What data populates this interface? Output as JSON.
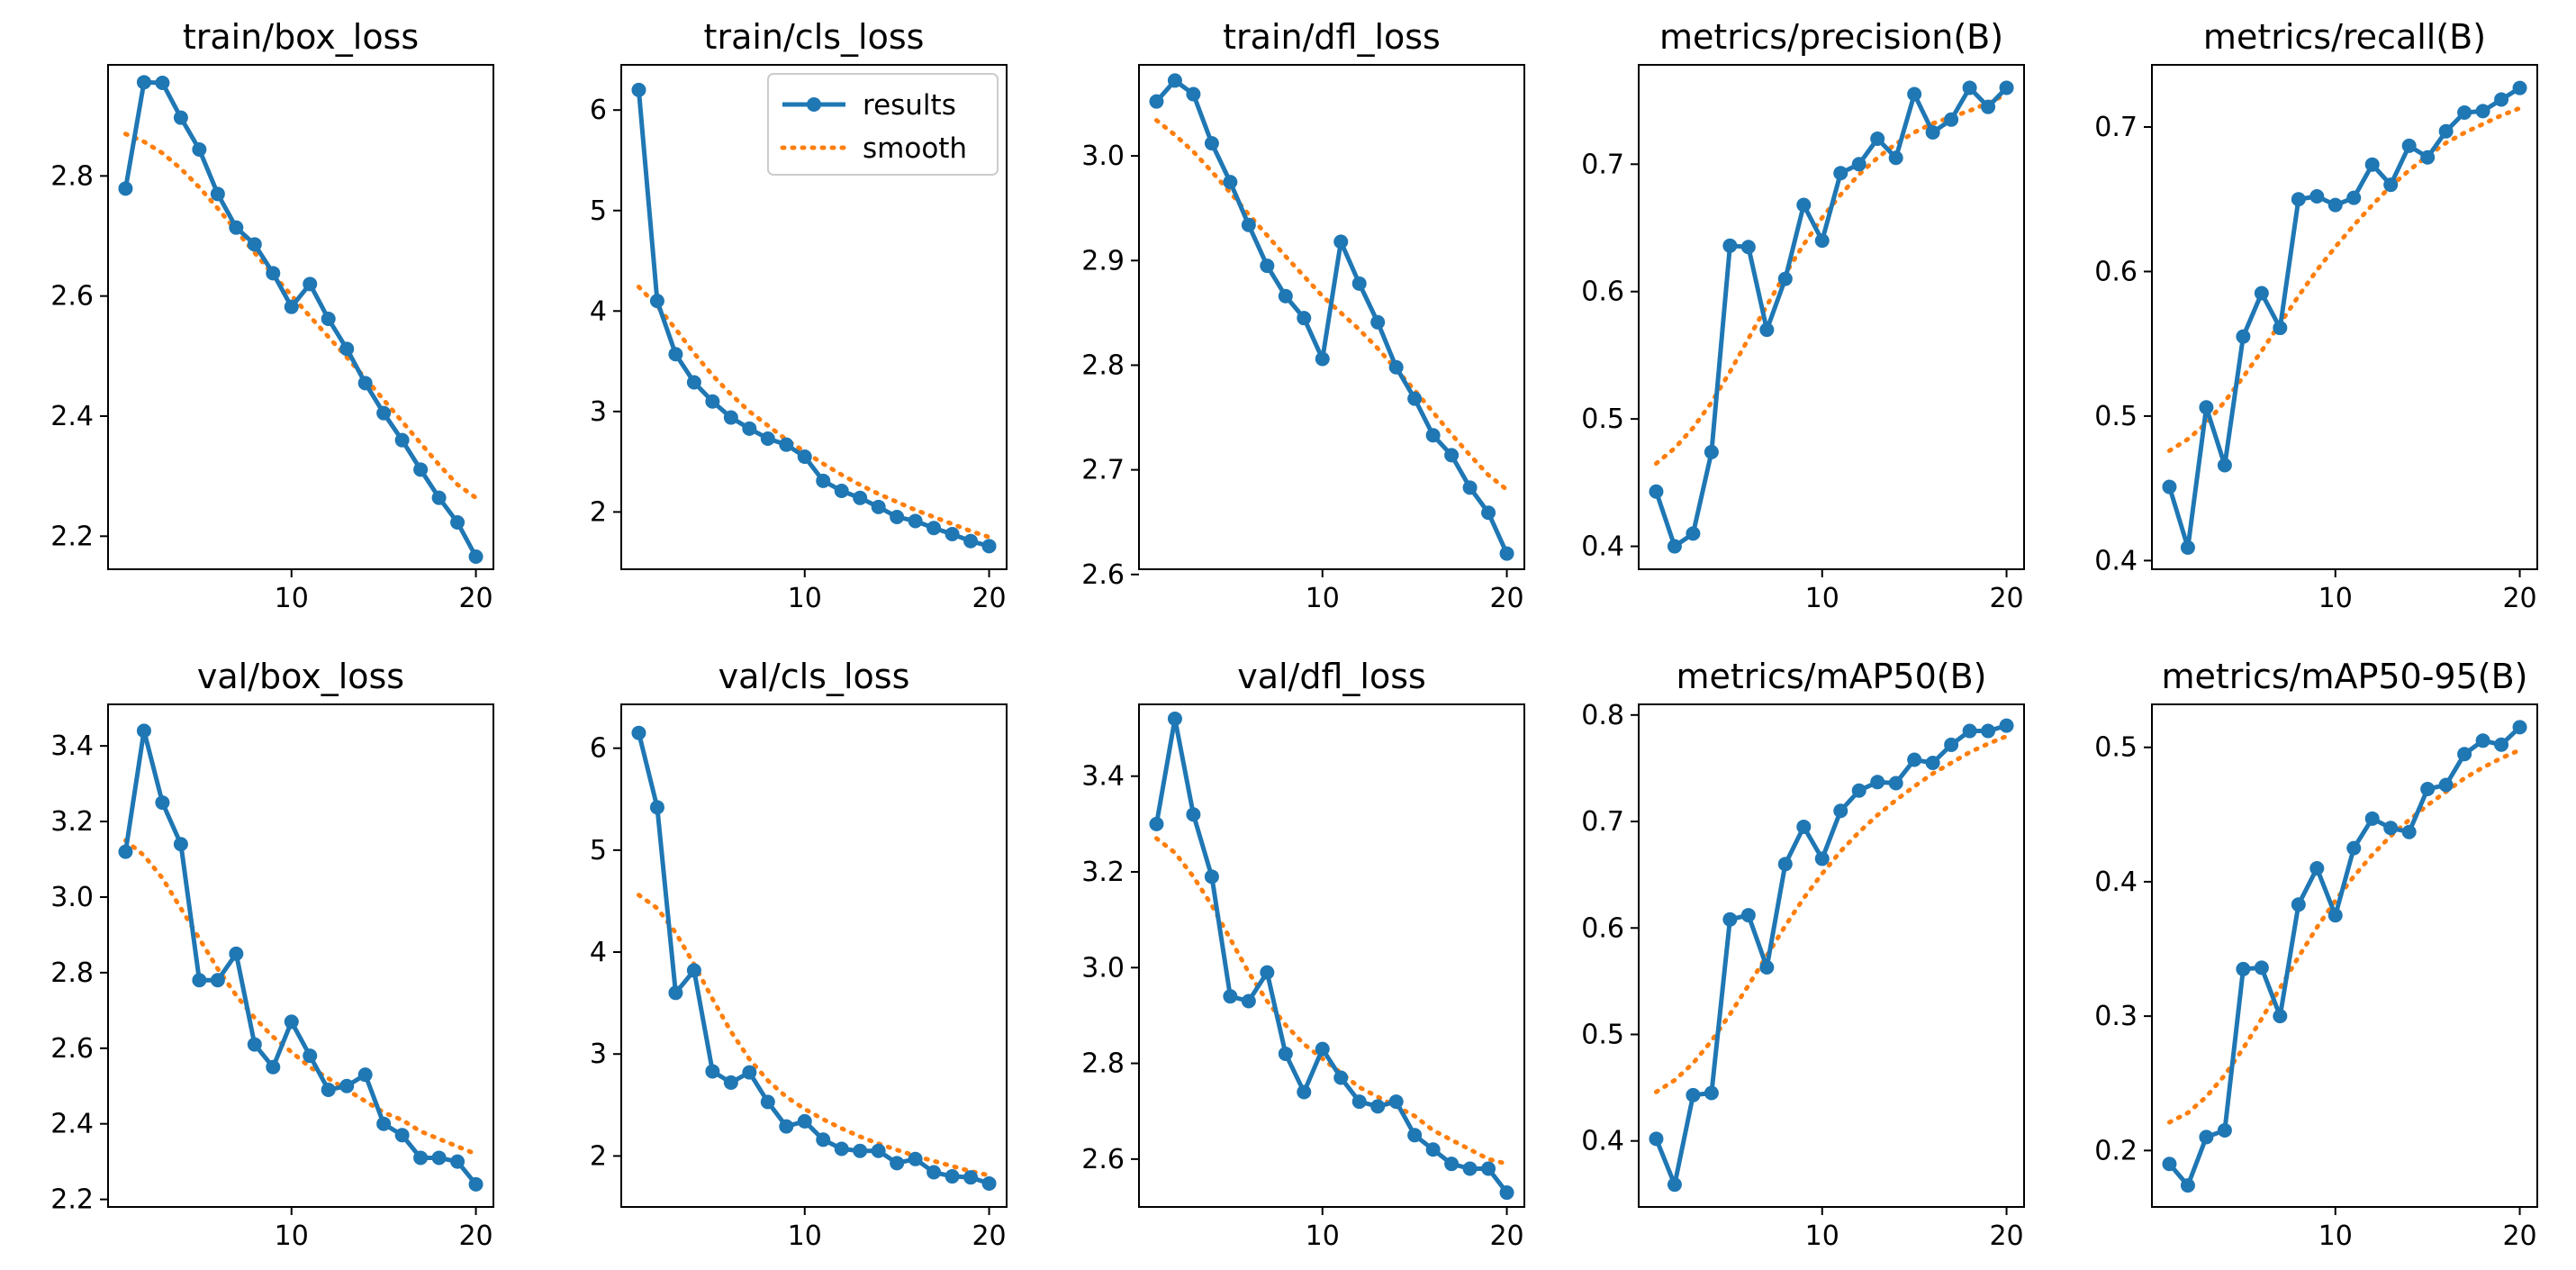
{
  "colors": {
    "results": "#1f77b4",
    "smooth": "#ff7f0e",
    "axes": "#000000",
    "background": "#ffffff"
  },
  "legend": {
    "placement": "top-right of train/cls_loss panel",
    "entries": [
      "results",
      "smooth"
    ]
  },
  "chart_data": [
    {
      "type": "line",
      "title": "train/box_loss",
      "xlabel": "",
      "ylabel": "",
      "xlim": [
        0.05,
        20.95
      ],
      "ylim": [
        2.145,
        2.985
      ],
      "x_ticks": [
        10,
        20
      ],
      "x_tick_labels": [
        "10",
        "20"
      ],
      "y_ticks": [
        2.2,
        2.4,
        2.6,
        2.8
      ],
      "y_tick_labels": [
        "2.2",
        "2.4",
        "2.6",
        "2.8"
      ],
      "legend": false,
      "x": [
        1,
        2,
        3,
        4,
        5,
        6,
        7,
        8,
        9,
        10,
        11,
        12,
        13,
        14,
        15,
        16,
        17,
        18,
        19,
        20
      ],
      "series": [
        {
          "name": "results",
          "values": [
            2.779,
            2.956,
            2.955,
            2.897,
            2.844,
            2.77,
            2.714,
            2.686,
            2.638,
            2.582,
            2.62,
            2.562,
            2.512,
            2.455,
            2.405,
            2.36,
            2.311,
            2.264,
            2.223,
            2.166
          ]
        },
        {
          "name": "smooth",
          "values": [
            2.87,
            2.857,
            2.838,
            2.812,
            2.781,
            2.746,
            2.709,
            2.672,
            2.636,
            2.601,
            2.566,
            2.532,
            2.498,
            2.463,
            2.427,
            2.391,
            2.355,
            2.319,
            2.286,
            2.264
          ]
        }
      ]
    },
    {
      "type": "line",
      "title": "train/cls_loss",
      "xlabel": "",
      "ylabel": "",
      "xlim": [
        0.05,
        20.95
      ],
      "ylim": [
        1.43,
        6.45
      ],
      "x_ticks": [
        10,
        20
      ],
      "x_tick_labels": [
        "10",
        "20"
      ],
      "y_ticks": [
        2,
        3,
        4,
        5,
        6
      ],
      "y_tick_labels": [
        "2",
        "3",
        "4",
        "5",
        "6"
      ],
      "legend": true,
      "x": [
        1,
        2,
        3,
        4,
        5,
        6,
        7,
        8,
        9,
        10,
        11,
        12,
        13,
        14,
        15,
        16,
        17,
        18,
        19,
        20
      ],
      "series": [
        {
          "name": "results",
          "values": [
            6.2,
            4.1,
            3.57,
            3.29,
            3.1,
            2.94,
            2.83,
            2.73,
            2.67,
            2.55,
            2.31,
            2.21,
            2.14,
            2.05,
            1.95,
            1.91,
            1.84,
            1.78,
            1.71,
            1.66
          ]
        },
        {
          "name": "smooth",
          "values": [
            4.24,
            4.05,
            3.82,
            3.58,
            3.36,
            3.17,
            3.0,
            2.86,
            2.72,
            2.6,
            2.48,
            2.37,
            2.27,
            2.18,
            2.1,
            2.02,
            1.95,
            1.88,
            1.81,
            1.75
          ]
        }
      ]
    },
    {
      "type": "line",
      "title": "train/dfl_loss",
      "xlabel": "",
      "ylabel": "",
      "xlim": [
        0.05,
        20.95
      ],
      "ylim": [
        2.605,
        3.087
      ],
      "x_ticks": [
        10,
        20
      ],
      "x_tick_labels": [
        "10",
        "20"
      ],
      "y_ticks": [
        2.6,
        2.7,
        2.8,
        2.9,
        3.0
      ],
      "y_tick_labels": [
        "2.6",
        "2.7",
        "2.8",
        "2.9",
        "3.0"
      ],
      "legend": false,
      "x": [
        1,
        2,
        3,
        4,
        5,
        6,
        7,
        8,
        9,
        10,
        11,
        12,
        13,
        14,
        15,
        16,
        17,
        18,
        19,
        20
      ],
      "series": [
        {
          "name": "results",
          "values": [
            3.052,
            3.072,
            3.059,
            3.012,
            2.975,
            2.934,
            2.895,
            2.866,
            2.845,
            2.806,
            2.918,
            2.878,
            2.841,
            2.798,
            2.768,
            2.733,
            2.714,
            2.683,
            2.659,
            2.62
          ]
        },
        {
          "name": "smooth",
          "values": [
            3.034,
            3.02,
            3.004,
            2.985,
            2.965,
            2.944,
            2.924,
            2.904,
            2.885,
            2.866,
            2.85,
            2.834,
            2.816,
            2.796,
            2.776,
            2.755,
            2.734,
            2.714,
            2.695,
            2.681
          ]
        }
      ]
    },
    {
      "type": "line",
      "title": "metrics/precision(B)",
      "xlabel": "",
      "ylabel": "",
      "xlim": [
        0.05,
        20.95
      ],
      "ylim": [
        0.382,
        0.778
      ],
      "x_ticks": [
        10,
        20
      ],
      "x_tick_labels": [
        "10",
        "20"
      ],
      "y_ticks": [
        0.4,
        0.5,
        0.6,
        0.7
      ],
      "y_tick_labels": [
        "0.4",
        "0.5",
        "0.6",
        "0.7"
      ],
      "legend": false,
      "x": [
        1,
        2,
        3,
        4,
        5,
        6,
        7,
        8,
        9,
        10,
        11,
        12,
        13,
        14,
        15,
        16,
        17,
        18,
        19,
        20
      ],
      "series": [
        {
          "name": "results",
          "values": [
            0.443,
            0.4,
            0.41,
            0.474,
            0.636,
            0.635,
            0.57,
            0.61,
            0.668,
            0.64,
            0.693,
            0.7,
            0.72,
            0.705,
            0.755,
            0.725,
            0.735,
            0.76,
            0.745,
            0.76
          ]
        },
        {
          "name": "smooth",
          "values": [
            0.465,
            0.477,
            0.493,
            0.513,
            0.537,
            0.563,
            0.589,
            0.614,
            0.637,
            0.658,
            0.676,
            0.692,
            0.705,
            0.716,
            0.725,
            0.732,
            0.737,
            0.742,
            0.748,
            0.755
          ]
        }
      ]
    },
    {
      "type": "line",
      "title": "metrics/recall(B)",
      "xlabel": "",
      "ylabel": "",
      "xlim": [
        0.05,
        20.95
      ],
      "ylim": [
        0.394,
        0.743
      ],
      "x_ticks": [
        10,
        20
      ],
      "x_tick_labels": [
        "10",
        "20"
      ],
      "y_ticks": [
        0.4,
        0.5,
        0.6,
        0.7
      ],
      "y_tick_labels": [
        "0.4",
        "0.5",
        "0.6",
        "0.7"
      ],
      "legend": false,
      "x": [
        1,
        2,
        3,
        4,
        5,
        6,
        7,
        8,
        9,
        10,
        11,
        12,
        13,
        14,
        15,
        16,
        17,
        18,
        19,
        20
      ],
      "series": [
        {
          "name": "results",
          "values": [
            0.451,
            0.409,
            0.506,
            0.466,
            0.555,
            0.585,
            0.561,
            0.65,
            0.652,
            0.646,
            0.651,
            0.674,
            0.66,
            0.687,
            0.679,
            0.697,
            0.71,
            0.711,
            0.719,
            0.727
          ]
        },
        {
          "name": "smooth",
          "values": [
            0.476,
            0.484,
            0.495,
            0.51,
            0.527,
            0.545,
            0.564,
            0.583,
            0.601,
            0.617,
            0.632,
            0.646,
            0.659,
            0.67,
            0.68,
            0.689,
            0.696,
            0.702,
            0.708,
            0.713
          ]
        }
      ]
    },
    {
      "type": "line",
      "title": "val/box_loss",
      "xlabel": "",
      "ylabel": "",
      "xlim": [
        0.05,
        20.95
      ],
      "ylim": [
        2.18,
        3.51
      ],
      "x_ticks": [
        10,
        20
      ],
      "x_tick_labels": [
        "10",
        "20"
      ],
      "y_ticks": [
        2.2,
        2.4,
        2.6,
        2.8,
        3.0,
        3.2,
        3.4
      ],
      "y_tick_labels": [
        "2.2",
        "2.4",
        "2.6",
        "2.8",
        "3.0",
        "3.2",
        "3.4"
      ],
      "legend": false,
      "x": [
        1,
        2,
        3,
        4,
        5,
        6,
        7,
        8,
        9,
        10,
        11,
        12,
        13,
        14,
        15,
        16,
        17,
        18,
        19,
        20
      ],
      "series": [
        {
          "name": "results",
          "values": [
            3.12,
            3.44,
            3.25,
            3.14,
            2.78,
            2.78,
            2.85,
            2.61,
            2.55,
            2.67,
            2.58,
            2.49,
            2.5,
            2.53,
            2.4,
            2.37,
            2.31,
            2.31,
            2.3,
            2.24
          ]
        },
        {
          "name": "smooth",
          "values": [
            3.15,
            3.11,
            3.05,
            2.97,
            2.89,
            2.81,
            2.74,
            2.68,
            2.63,
            2.59,
            2.55,
            2.52,
            2.49,
            2.46,
            2.43,
            2.41,
            2.38,
            2.36,
            2.34,
            2.32
          ]
        }
      ]
    },
    {
      "type": "line",
      "title": "val/cls_loss",
      "xlabel": "",
      "ylabel": "",
      "xlim": [
        0.05,
        20.95
      ],
      "ylim": [
        1.5,
        6.43
      ],
      "x_ticks": [
        10,
        20
      ],
      "x_tick_labels": [
        "10",
        "20"
      ],
      "y_ticks": [
        2,
        3,
        4,
        5,
        6
      ],
      "y_tick_labels": [
        "2",
        "3",
        "4",
        "5",
        "6"
      ],
      "legend": false,
      "x": [
        1,
        2,
        3,
        4,
        5,
        6,
        7,
        8,
        9,
        10,
        11,
        12,
        13,
        14,
        15,
        16,
        17,
        18,
        19,
        20
      ],
      "series": [
        {
          "name": "results",
          "values": [
            6.15,
            5.42,
            3.6,
            3.82,
            2.83,
            2.72,
            2.82,
            2.53,
            2.29,
            2.34,
            2.16,
            2.07,
            2.05,
            2.05,
            1.93,
            1.97,
            1.84,
            1.8,
            1.79,
            1.73
          ]
        },
        {
          "name": "smooth",
          "values": [
            4.56,
            4.43,
            4.19,
            3.88,
            3.54,
            3.22,
            2.95,
            2.74,
            2.58,
            2.46,
            2.36,
            2.27,
            2.19,
            2.12,
            2.06,
            2.0,
            1.95,
            1.9,
            1.85,
            1.81
          ]
        }
      ]
    },
    {
      "type": "line",
      "title": "val/dfl_loss",
      "xlabel": "",
      "ylabel": "",
      "xlim": [
        0.05,
        20.95
      ],
      "ylim": [
        2.5,
        3.55
      ],
      "x_ticks": [
        10,
        20
      ],
      "x_tick_labels": [
        "10",
        "20"
      ],
      "y_ticks": [
        2.6,
        2.8,
        3.0,
        3.2,
        3.4
      ],
      "y_tick_labels": [
        "2.6",
        "2.8",
        "3.0",
        "3.2",
        "3.4"
      ],
      "legend": false,
      "x": [
        1,
        2,
        3,
        4,
        5,
        6,
        7,
        8,
        9,
        10,
        11,
        12,
        13,
        14,
        15,
        16,
        17,
        18,
        19,
        20
      ],
      "series": [
        {
          "name": "results",
          "values": [
            3.3,
            3.52,
            3.32,
            3.19,
            2.94,
            2.93,
            2.99,
            2.82,
            2.74,
            2.83,
            2.77,
            2.72,
            2.71,
            2.72,
            2.65,
            2.62,
            2.59,
            2.58,
            2.58,
            2.53
          ]
        },
        {
          "name": "smooth",
          "values": [
            3.27,
            3.24,
            3.19,
            3.13,
            3.06,
            2.99,
            2.93,
            2.88,
            2.84,
            2.81,
            2.78,
            2.75,
            2.73,
            2.71,
            2.69,
            2.66,
            2.64,
            2.62,
            2.6,
            2.59
          ]
        }
      ]
    },
    {
      "type": "line",
      "title": "metrics/mAP50(B)",
      "xlabel": "",
      "ylabel": "",
      "xlim": [
        0.05,
        20.95
      ],
      "ylim": [
        0.338,
        0.81
      ],
      "x_ticks": [
        10,
        20
      ],
      "x_tick_labels": [
        "10",
        "20"
      ],
      "y_ticks": [
        0.4,
        0.5,
        0.6,
        0.7,
        0.8
      ],
      "y_tick_labels": [
        "0.4",
        "0.5",
        "0.6",
        "0.7",
        "0.8"
      ],
      "legend": false,
      "x": [
        1,
        2,
        3,
        4,
        5,
        6,
        7,
        8,
        9,
        10,
        11,
        12,
        13,
        14,
        15,
        16,
        17,
        18,
        19,
        20
      ],
      "series": [
        {
          "name": "results",
          "values": [
            0.402,
            0.359,
            0.443,
            0.445,
            0.608,
            0.612,
            0.563,
            0.66,
            0.695,
            0.665,
            0.71,
            0.729,
            0.737,
            0.736,
            0.758,
            0.755,
            0.772,
            0.785,
            0.785,
            0.79
          ]
        },
        {
          "name": "smooth",
          "values": [
            0.446,
            0.457,
            0.473,
            0.494,
            0.519,
            0.546,
            0.574,
            0.602,
            0.628,
            0.651,
            0.672,
            0.69,
            0.706,
            0.72,
            0.733,
            0.745,
            0.755,
            0.765,
            0.773,
            0.78
          ]
        }
      ]
    },
    {
      "type": "line",
      "title": "metrics/mAP50-95(B)",
      "xlabel": "",
      "ylabel": "",
      "xlim": [
        0.05,
        20.95
      ],
      "ylim": [
        0.158,
        0.532
      ],
      "x_ticks": [
        10,
        20
      ],
      "x_tick_labels": [
        "10",
        "20"
      ],
      "y_ticks": [
        0.2,
        0.3,
        0.4,
        0.5
      ],
      "y_tick_labels": [
        "0.2",
        "0.3",
        "0.4",
        "0.5"
      ],
      "legend": false,
      "x": [
        1,
        2,
        3,
        4,
        5,
        6,
        7,
        8,
        9,
        10,
        11,
        12,
        13,
        14,
        15,
        16,
        17,
        18,
        19,
        20
      ],
      "series": [
        {
          "name": "results",
          "values": [
            0.19,
            0.174,
            0.21,
            0.215,
            0.335,
            0.336,
            0.3,
            0.383,
            0.41,
            0.375,
            0.425,
            0.447,
            0.44,
            0.437,
            0.469,
            0.472,
            0.495,
            0.505,
            0.502,
            0.515
          ]
        },
        {
          "name": "smooth",
          "values": [
            0.221,
            0.228,
            0.24,
            0.256,
            0.276,
            0.298,
            0.321,
            0.344,
            0.366,
            0.386,
            0.404,
            0.42,
            0.434,
            0.446,
            0.457,
            0.467,
            0.477,
            0.485,
            0.492,
            0.498
          ]
        }
      ]
    }
  ]
}
